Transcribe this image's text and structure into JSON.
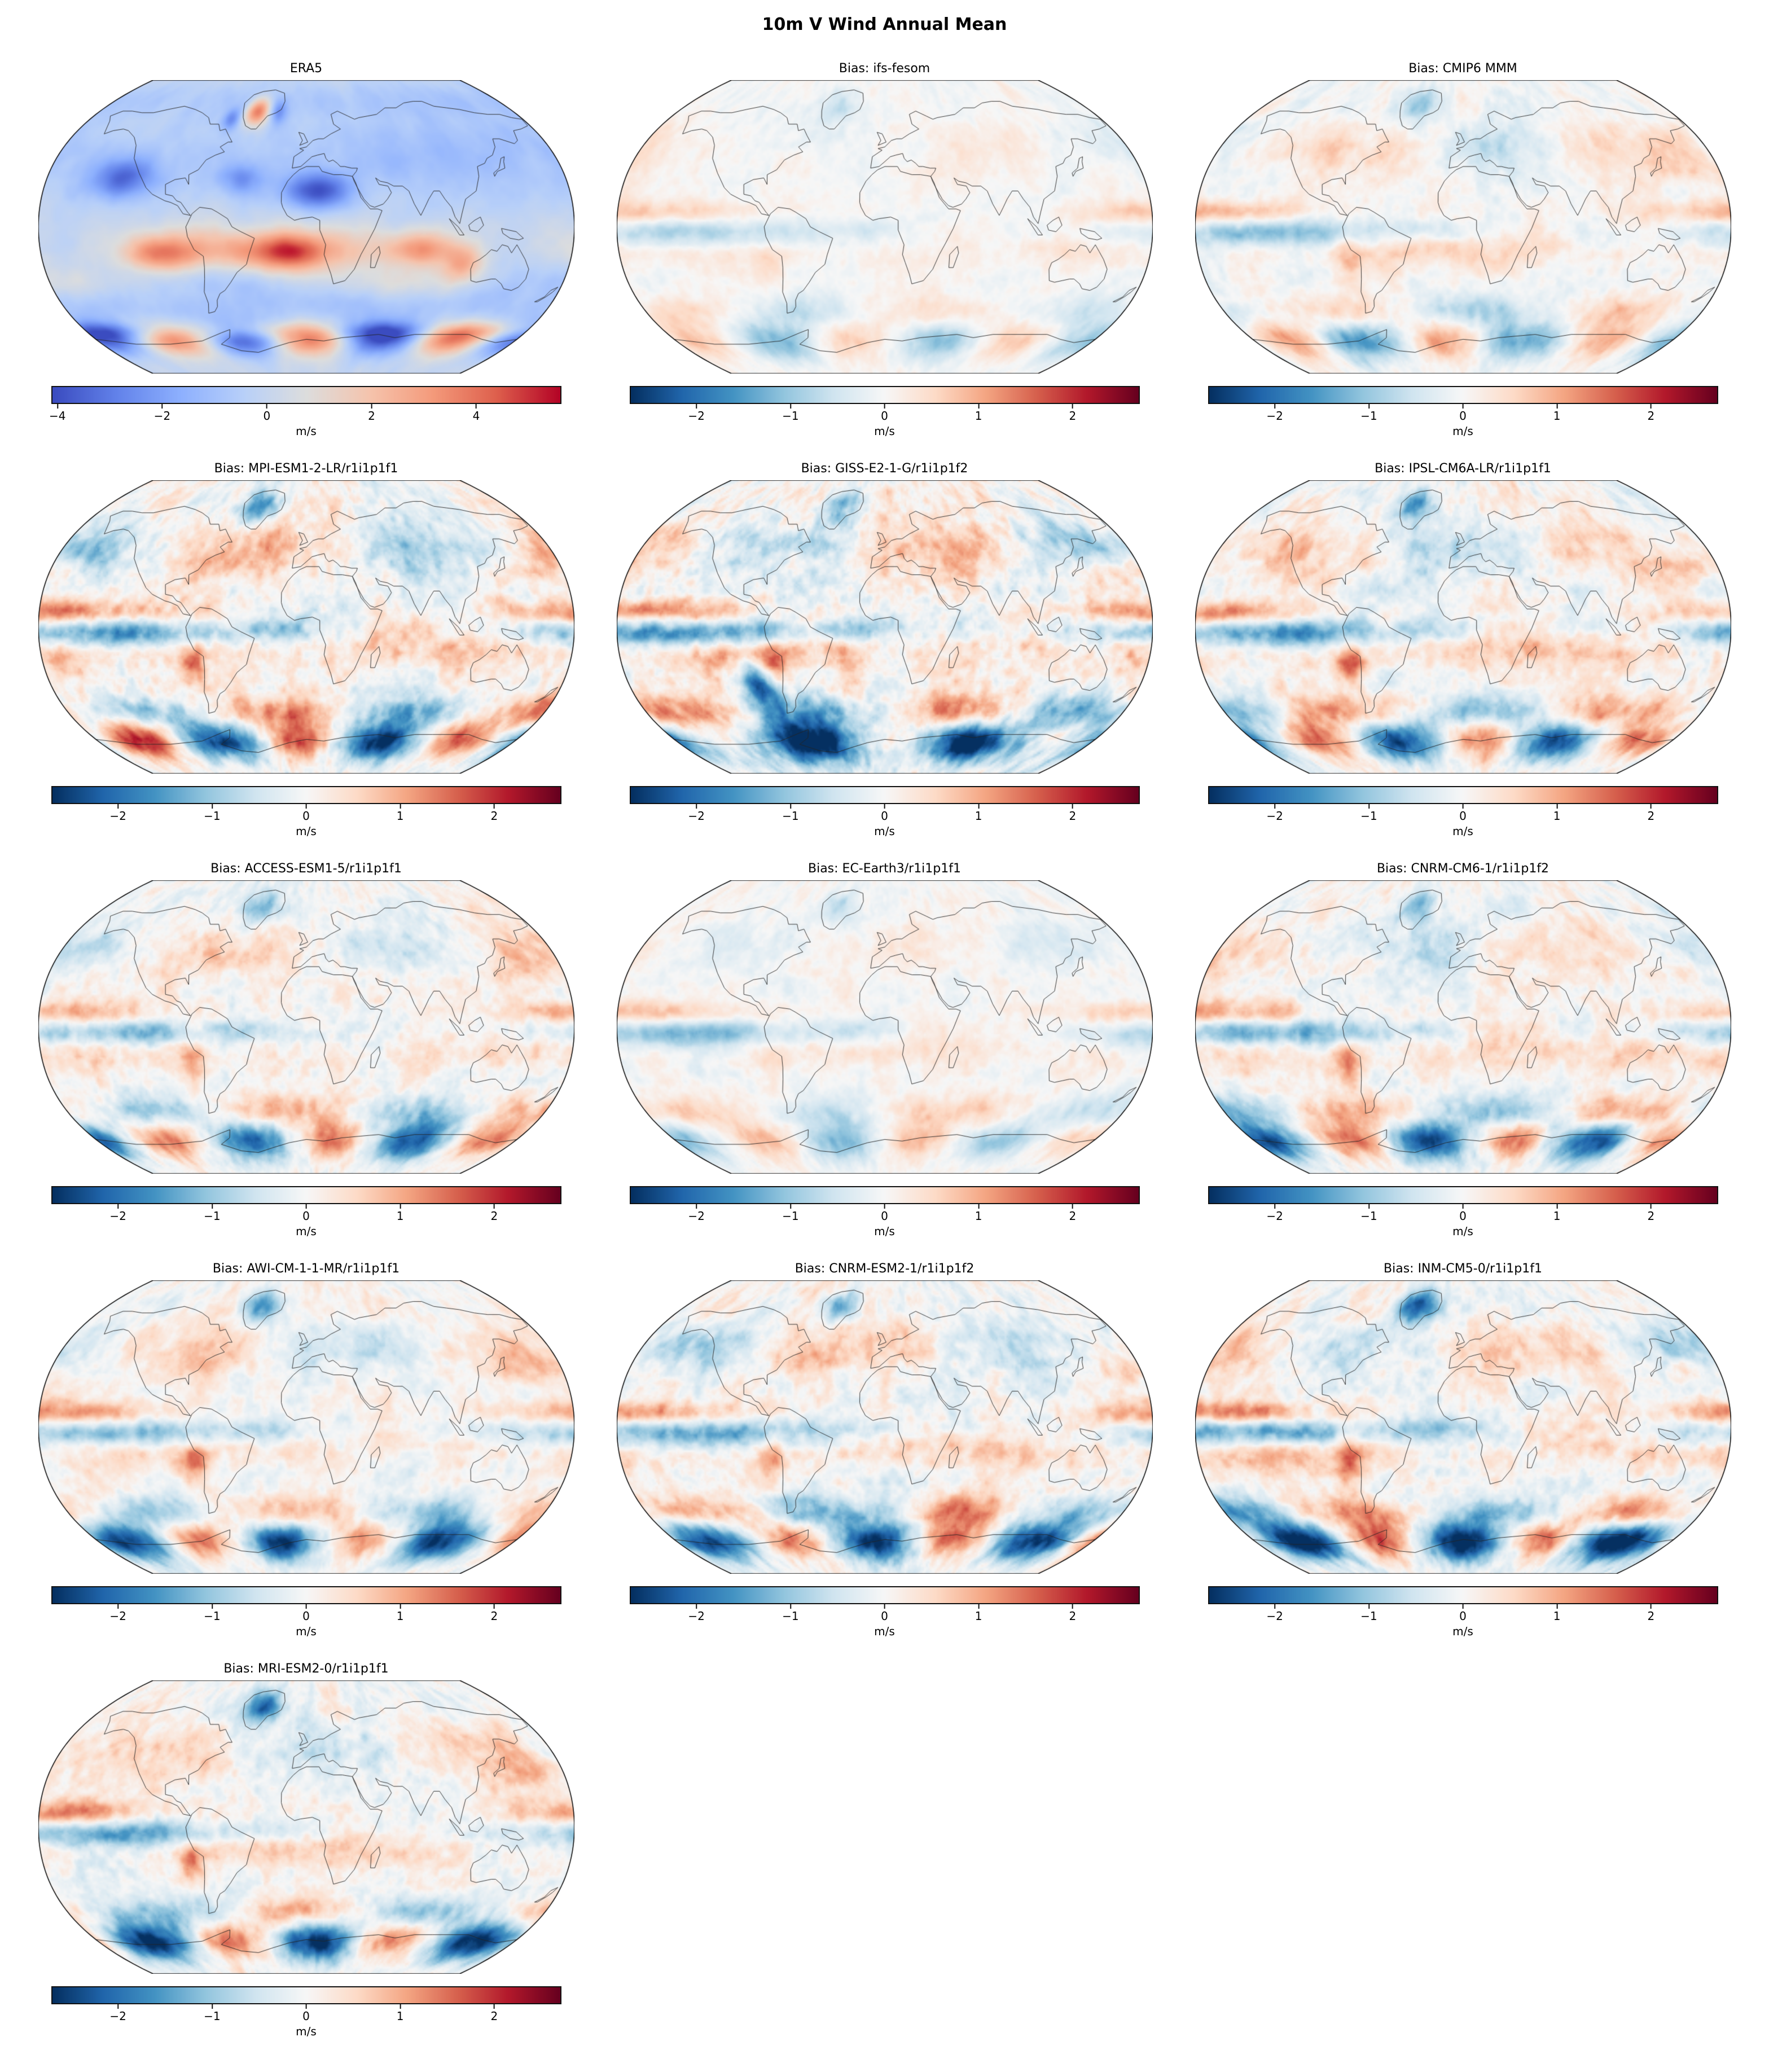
{
  "figure": {
    "title": "10m V Wind Annual Mean",
    "units": "m/s",
    "layout": {
      "rows": 5,
      "columns": 3,
      "projection": "robinson"
    }
  },
  "chart_data": [
    {
      "type": "heatmap",
      "kind": "reference",
      "title": "ERA5",
      "projection": "robinson",
      "colormap": "coolwarm",
      "units": "m/s",
      "colorbar_ticks": [
        -4,
        -2,
        0,
        2,
        4
      ],
      "colorbar_tick_labels": [
        "−4",
        "−2",
        "0",
        "2",
        "4"
      ],
      "value_range": [
        -4.1,
        5.6
      ],
      "row": 1,
      "col": 1
    },
    {
      "type": "heatmap",
      "kind": "bias",
      "title": "Bias: ifs-fesom",
      "projection": "robinson",
      "colormap": "RdBu_r",
      "units": "m/s",
      "colorbar_ticks": [
        -2,
        -1,
        0,
        1,
        2
      ],
      "colorbar_tick_labels": [
        "−2",
        "−1",
        "0",
        "1",
        "2"
      ],
      "value_range": [
        -2.7,
        2.7
      ],
      "row": 1,
      "col": 2
    },
    {
      "type": "heatmap",
      "kind": "bias",
      "title": "Bias: CMIP6 MMM",
      "projection": "robinson",
      "colormap": "RdBu_r",
      "units": "m/s",
      "colorbar_ticks": [
        -2,
        -1,
        0,
        1,
        2
      ],
      "colorbar_tick_labels": [
        "−2",
        "−1",
        "0",
        "1",
        "2"
      ],
      "value_range": [
        -2.7,
        2.7
      ],
      "row": 1,
      "col": 3
    },
    {
      "type": "heatmap",
      "kind": "bias",
      "title": "Bias: MPI-ESM1-2-LR/r1i1p1f1",
      "projection": "robinson",
      "colormap": "RdBu_r",
      "units": "m/s",
      "colorbar_ticks": [
        -2,
        -1,
        0,
        1,
        2
      ],
      "colorbar_tick_labels": [
        "−2",
        "−1",
        "0",
        "1",
        "2"
      ],
      "value_range": [
        -2.7,
        2.7
      ],
      "row": 2,
      "col": 1
    },
    {
      "type": "heatmap",
      "kind": "bias",
      "title": "Bias: GISS-E2-1-G/r1i1p1f2",
      "projection": "robinson",
      "colormap": "RdBu_r",
      "units": "m/s",
      "colorbar_ticks": [
        -2,
        -1,
        0,
        1,
        2
      ],
      "colorbar_tick_labels": [
        "−2",
        "−1",
        "0",
        "1",
        "2"
      ],
      "value_range": [
        -2.7,
        2.7
      ],
      "row": 2,
      "col": 2
    },
    {
      "type": "heatmap",
      "kind": "bias",
      "title": "Bias: IPSL-CM6A-LR/r1i1p1f1",
      "projection": "robinson",
      "colormap": "RdBu_r",
      "units": "m/s",
      "colorbar_ticks": [
        -2,
        -1,
        0,
        1,
        2
      ],
      "colorbar_tick_labels": [
        "−2",
        "−1",
        "0",
        "1",
        "2"
      ],
      "value_range": [
        -2.7,
        2.7
      ],
      "row": 2,
      "col": 3
    },
    {
      "type": "heatmap",
      "kind": "bias",
      "title": "Bias: ACCESS-ESM1-5/r1i1p1f1",
      "projection": "robinson",
      "colormap": "RdBu_r",
      "units": "m/s",
      "colorbar_ticks": [
        -2,
        -1,
        0,
        1,
        2
      ],
      "colorbar_tick_labels": [
        "−2",
        "−1",
        "0",
        "1",
        "2"
      ],
      "value_range": [
        -2.7,
        2.7
      ],
      "row": 3,
      "col": 1
    },
    {
      "type": "heatmap",
      "kind": "bias",
      "title": "Bias: EC-Earth3/r1i1p1f1",
      "projection": "robinson",
      "colormap": "RdBu_r",
      "units": "m/s",
      "colorbar_ticks": [
        -2,
        -1,
        0,
        1,
        2
      ],
      "colorbar_tick_labels": [
        "−2",
        "−1",
        "0",
        "1",
        "2"
      ],
      "value_range": [
        -2.7,
        2.7
      ],
      "row": 3,
      "col": 2
    },
    {
      "type": "heatmap",
      "kind": "bias",
      "title": "Bias: CNRM-CM6-1/r1i1p1f2",
      "projection": "robinson",
      "colormap": "RdBu_r",
      "units": "m/s",
      "colorbar_ticks": [
        -2,
        -1,
        0,
        1,
        2
      ],
      "colorbar_tick_labels": [
        "−2",
        "−1",
        "0",
        "1",
        "2"
      ],
      "value_range": [
        -2.7,
        2.7
      ],
      "row": 3,
      "col": 3
    },
    {
      "type": "heatmap",
      "kind": "bias",
      "title": "Bias: AWI-CM-1-1-MR/r1i1p1f1",
      "projection": "robinson",
      "colormap": "RdBu_r",
      "units": "m/s",
      "colorbar_ticks": [
        -2,
        -1,
        0,
        1,
        2
      ],
      "colorbar_tick_labels": [
        "−2",
        "−1",
        "0",
        "1",
        "2"
      ],
      "value_range": [
        -2.7,
        2.7
      ],
      "row": 4,
      "col": 1
    },
    {
      "type": "heatmap",
      "kind": "bias",
      "title": "Bias: CNRM-ESM2-1/r1i1p1f2",
      "projection": "robinson",
      "colormap": "RdBu_r",
      "units": "m/s",
      "colorbar_ticks": [
        -2,
        -1,
        0,
        1,
        2
      ],
      "colorbar_tick_labels": [
        "−2",
        "−1",
        "0",
        "1",
        "2"
      ],
      "value_range": [
        -2.7,
        2.7
      ],
      "row": 4,
      "col": 2
    },
    {
      "type": "heatmap",
      "kind": "bias",
      "title": "Bias: INM-CM5-0/r1i1p1f1",
      "projection": "robinson",
      "colormap": "RdBu_r",
      "units": "m/s",
      "colorbar_ticks": [
        -2,
        -1,
        0,
        1,
        2
      ],
      "colorbar_tick_labels": [
        "−2",
        "−1",
        "0",
        "1",
        "2"
      ],
      "value_range": [
        -2.7,
        2.7
      ],
      "row": 4,
      "col": 3
    },
    {
      "type": "heatmap",
      "kind": "bias",
      "title": "Bias: MRI-ESM2-0/r1i1p1f1",
      "projection": "robinson",
      "colormap": "RdBu_r",
      "units": "m/s",
      "colorbar_ticks": [
        -2,
        -1,
        0,
        1,
        2
      ],
      "colorbar_tick_labels": [
        "−2",
        "−1",
        "0",
        "1",
        "2"
      ],
      "value_range": [
        -2.7,
        2.7
      ],
      "row": 5,
      "col": 1
    }
  ]
}
